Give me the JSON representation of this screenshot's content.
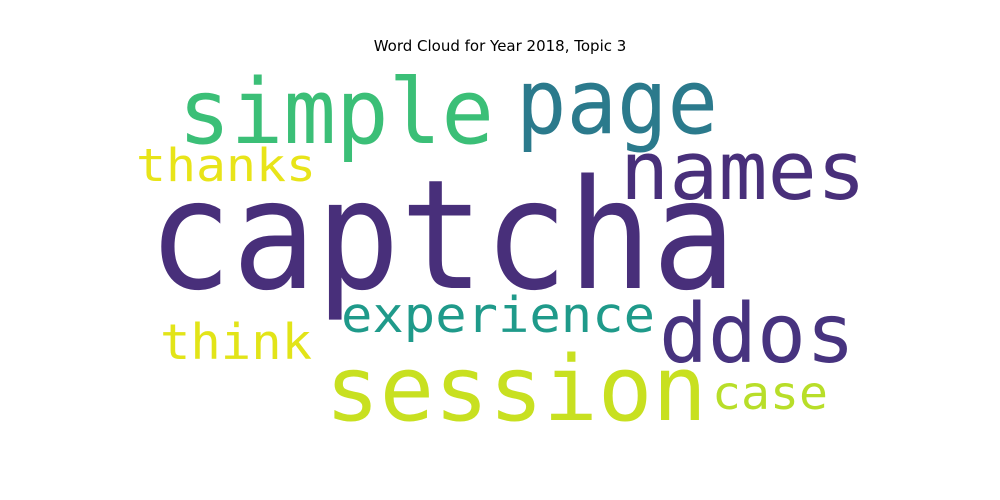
{
  "chart_data": {
    "type": "word_cloud",
    "title": "Word Cloud for Year 2018, Topic 3",
    "words": [
      {
        "text": "captcha",
        "color": "#482f7a"
      },
      {
        "text": "simple",
        "color": "#3bbf77"
      },
      {
        "text": "page",
        "color": "#2b7a8c"
      },
      {
        "text": "names",
        "color": "#482f7a"
      },
      {
        "text": "session",
        "color": "#c8e020"
      },
      {
        "text": "ddos",
        "color": "#47337f"
      },
      {
        "text": "experience",
        "color": "#1f9a8a"
      },
      {
        "text": "think",
        "color": "#e2e418"
      },
      {
        "text": "thanks",
        "color": "#e8e419"
      },
      {
        "text": "case",
        "color": "#b8de29"
      }
    ]
  }
}
